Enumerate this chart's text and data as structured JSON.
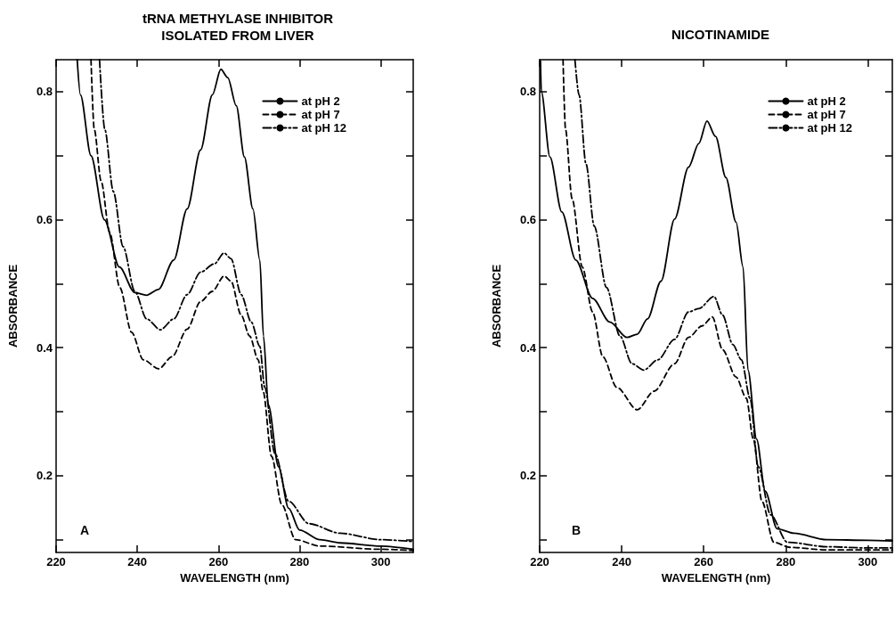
{
  "chart_data": [
    {
      "type": "line",
      "title": "tRNA METHYLASE INHIBITOR\nISOLATED FROM LIVER",
      "xlabel": "WAVELENGTH (nm)",
      "ylabel": "ABSORBANCE",
      "annotations": [
        "A"
      ],
      "legend": "top right",
      "marker": "none",
      "xlim": [
        220,
        308
      ],
      "xticks": [
        220,
        240,
        260,
        280,
        300
      ],
      "ylim": [
        0.08,
        0.85
      ],
      "yticks": [
        {
          "value": 0.1,
          "label": null
        },
        0.2,
        {
          "value": 0.3,
          "label": null
        },
        0.4,
        {
          "value": 0.5,
          "label": null
        },
        0.6,
        {
          "value": 0.7,
          "label": null
        },
        0.8
      ],
      "series": [
        {
          "name": "at pH 2",
          "color": "#000000",
          "line_style": "solid",
          "x": [
            225.2,
            226,
            228.6,
            231.9,
            235.6,
            239.4,
            242.3,
            245.2,
            249,
            252.3,
            255.6,
            258.5,
            260.6,
            262.3,
            264.4,
            266.4,
            268.5,
            270.2,
            271.1,
            272.3,
            274.8,
            277.3,
            280,
            285,
            290,
            300,
            308
          ],
          "values": [
            0.85,
            0.795,
            0.7,
            0.6,
            0.526,
            0.486,
            0.482,
            0.491,
            0.537,
            0.617,
            0.709,
            0.795,
            0.835,
            0.822,
            0.778,
            0.698,
            0.617,
            0.537,
            0.418,
            0.311,
            0.214,
            0.149,
            0.115,
            0.1,
            0.095,
            0.09,
            0.085
          ]
        },
        {
          "name": "at pH 7",
          "color": "#000000",
          "line_style": "dashed",
          "x": [
            228.6,
            229.4,
            231.1,
            233.2,
            235.7,
            238.6,
            241.5,
            245.3,
            248.6,
            252.3,
            255.6,
            258.5,
            261.4,
            263.1,
            265.6,
            267.7,
            269.8,
            271,
            273.1,
            275.6,
            279,
            285,
            300,
            308
          ],
          "values": [
            0.85,
            0.741,
            0.66,
            0.58,
            0.494,
            0.424,
            0.381,
            0.367,
            0.386,
            0.429,
            0.472,
            0.488,
            0.512,
            0.504,
            0.451,
            0.418,
            0.381,
            0.332,
            0.23,
            0.155,
            0.1,
            0.09,
            0.085,
            0.083
          ]
        },
        {
          "name": "at pH 12",
          "color": "#000000",
          "line_style": "dashdot",
          "x": [
            230.7,
            232,
            234.1,
            236.5,
            239.4,
            242.3,
            245.7,
            249,
            252.3,
            255.6,
            259,
            261.4,
            263.1,
            265.6,
            268.1,
            270.2,
            271.4,
            273.9,
            277.3,
            282.3,
            290,
            300,
            308
          ],
          "values": [
            0.85,
            0.741,
            0.644,
            0.558,
            0.488,
            0.445,
            0.428,
            0.445,
            0.483,
            0.518,
            0.531,
            0.548,
            0.539,
            0.483,
            0.44,
            0.402,
            0.338,
            0.235,
            0.16,
            0.125,
            0.11,
            0.1,
            0.097
          ]
        }
      ]
    },
    {
      "type": "line",
      "title": "NICOTINAMIDE",
      "xlabel": "WAVELENGTH (nm)",
      "ylabel": "ABSORBANCE",
      "annotations": [
        "B"
      ],
      "legend": "top right",
      "marker": "none",
      "xlim": [
        220,
        306
      ],
      "xticks": [
        220,
        240,
        260,
        280,
        300
      ],
      "ylim": [
        0.08,
        0.85
      ],
      "yticks": [
        {
          "value": 0.1,
          "label": null
        },
        0.2,
        {
          "value": 0.3,
          "label": null
        },
        0.4,
        {
          "value": 0.5,
          "label": null
        },
        0.6,
        {
          "value": 0.7,
          "label": null
        },
        0.8
      ],
      "series": [
        {
          "name": "at pH 2",
          "color": "#000000",
          "line_style": "solid",
          "x": [
            220.2,
            220.4,
            222.5,
            225.4,
            228.8,
            232.9,
            237.1,
            241.3,
            243.8,
            246.3,
            249.6,
            252.9,
            256.3,
            258.8,
            260.8,
            262.9,
            265.4,
            267.9,
            269.6,
            270.8,
            272.9,
            275,
            277.9,
            282,
            290,
            300,
            306
          ],
          "values": [
            0.848,
            0.8,
            0.698,
            0.612,
            0.537,
            0.477,
            0.44,
            0.416,
            0.421,
            0.445,
            0.504,
            0.601,
            0.682,
            0.719,
            0.754,
            0.73,
            0.666,
            0.596,
            0.526,
            0.365,
            0.257,
            0.176,
            0.117,
            0.11,
            0.1,
            0.099,
            0.098
          ]
        },
        {
          "name": "at pH 7",
          "color": "#000000",
          "line_style": "dashed",
          "x": [
            225.7,
            226.3,
            227.9,
            230.4,
            232.9,
            235.4,
            238.8,
            243.8,
            247.9,
            252.9,
            256.3,
            259.6,
            262.1,
            264.6,
            267.9,
            270.4,
            272.1,
            274.2,
            277.1,
            281,
            290,
            300,
            306
          ],
          "values": [
            0.85,
            0.741,
            0.633,
            0.526,
            0.456,
            0.386,
            0.338,
            0.303,
            0.332,
            0.375,
            0.416,
            0.434,
            0.448,
            0.397,
            0.354,
            0.321,
            0.257,
            0.16,
            0.096,
            0.088,
            0.084,
            0.084,
            0.084
          ]
        },
        {
          "name": "at pH 12",
          "color": "#000000",
          "line_style": "dashdot",
          "x": [
            228.6,
            229.6,
            231.3,
            233.3,
            236.3,
            239.6,
            242.5,
            245.4,
            248.8,
            252.9,
            256.3,
            258.8,
            262.5,
            264.6,
            267.1,
            269.2,
            271.3,
            273.3,
            276.3,
            280.4,
            290,
            300,
            306
          ],
          "values": [
            0.85,
            0.795,
            0.687,
            0.59,
            0.494,
            0.418,
            0.375,
            0.365,
            0.381,
            0.413,
            0.456,
            0.461,
            0.48,
            0.451,
            0.405,
            0.381,
            0.321,
            0.214,
            0.139,
            0.096,
            0.089,
            0.087,
            0.087
          ]
        }
      ]
    }
  ]
}
